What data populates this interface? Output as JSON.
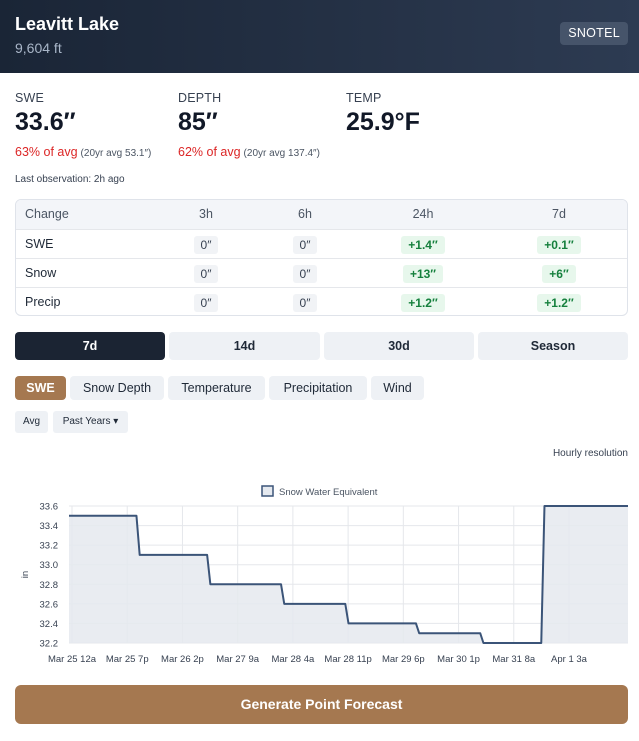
{
  "header": {
    "station_name": "Leavitt Lake",
    "elevation": "9,604 ft",
    "network_badge": "SNOTEL"
  },
  "metrics": {
    "swe": {
      "label": "SWE",
      "value": "33.6″",
      "pct_of_avg": "63% of avg",
      "avg_note": "(20yr avg 53.1″)"
    },
    "depth": {
      "label": "DEPTH",
      "value": "85″",
      "pct_of_avg": "62% of avg",
      "avg_note": "(20yr avg 137.4″)"
    },
    "temp": {
      "label": "TEMP",
      "value": "25.9°F"
    }
  },
  "colors": {
    "header_bg": "#1a2536",
    "accent": "#a57850",
    "negative": "#dc2626",
    "positive": "#15803d",
    "series": "#3b5478"
  },
  "last_observation": "Last observation: 2h ago",
  "change_table": {
    "headers": [
      "Change",
      "3h",
      "6h",
      "24h",
      "7d"
    ],
    "rows": [
      {
        "label": "SWE",
        "values": [
          "0″",
          "0″",
          "+1.4″",
          "+0.1″"
        ]
      },
      {
        "label": "Snow",
        "values": [
          "0″",
          "0″",
          "+13″",
          "+6″"
        ]
      },
      {
        "label": "Precip",
        "values": [
          "0″",
          "0″",
          "+1.2″",
          "+1.2″"
        ]
      }
    ]
  },
  "range_tabs": [
    "7d",
    "14d",
    "30d",
    "Season"
  ],
  "range_active": "7d",
  "variable_tabs": [
    "SWE",
    "Snow Depth",
    "Temperature",
    "Precipitation",
    "Wind"
  ],
  "variable_active": "SWE",
  "options": {
    "avg_label": "Avg",
    "past_years_label": "Past Years ▾"
  },
  "resolution_note": "Hourly resolution",
  "chart_data": {
    "type": "line",
    "legend": "Snow Water Equivalent",
    "legend_position": "top",
    "ylabel": "in",
    "ylim": [
      32.2,
      33.6
    ],
    "yticks": [
      33.6,
      33.4,
      33.2,
      33.0,
      32.8,
      32.6,
      32.4,
      32.2
    ],
    "x_ticks": [
      "Mar 25 12a",
      "Mar 25 7p",
      "Mar 26 2p",
      "Mar 27 9a",
      "Mar 28 4a",
      "Mar 28 11p",
      "Mar 29 6p",
      "Mar 30 1p",
      "Mar 31 8a",
      "Apr 1 3a"
    ],
    "x_range_hours": [
      0,
      174
    ],
    "grid": true,
    "fill": true,
    "series": [
      {
        "name": "Snow Water Equivalent",
        "points": [
          [
            0,
            33.5
          ],
          [
            21,
            33.5
          ],
          [
            22,
            33.1
          ],
          [
            43,
            33.1
          ],
          [
            44,
            32.8
          ],
          [
            66,
            32.8
          ],
          [
            67,
            32.6
          ],
          [
            86,
            32.6
          ],
          [
            87,
            32.4
          ],
          [
            108,
            32.4
          ],
          [
            109,
            32.3
          ],
          [
            128,
            32.3
          ],
          [
            129,
            32.2
          ],
          [
            147,
            32.2
          ],
          [
            148,
            33.6
          ],
          [
            174,
            33.6
          ]
        ]
      }
    ]
  },
  "forecast_button": "Generate Point Forecast"
}
